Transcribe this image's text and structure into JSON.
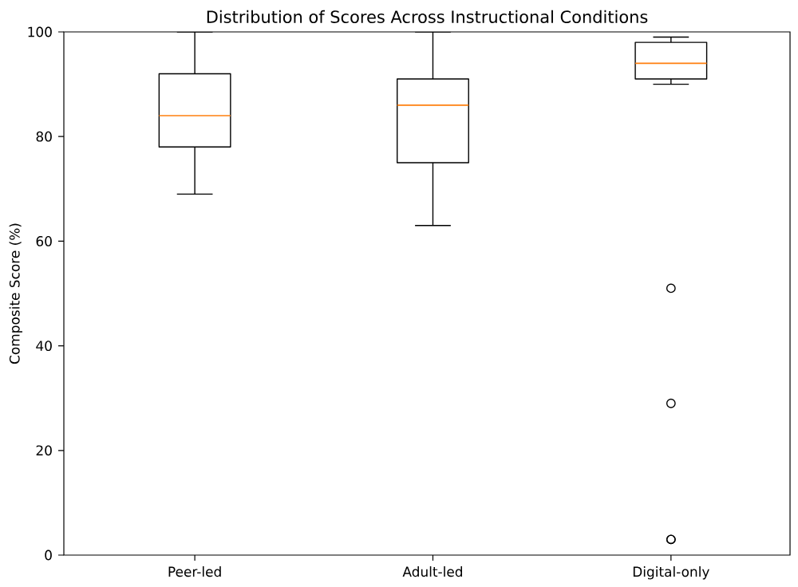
{
  "chart_data": {
    "type": "box",
    "title": "Distribution of Scores Across Instructional Conditions",
    "ylabel": "Composite Score (%)",
    "categories": [
      "Peer-led",
      "Adult-led",
      "Digital-only"
    ],
    "color": "#000000",
    "boxes": [
      {
        "low": 69,
        "q1": 78,
        "median": 84,
        "q3": 92,
        "high": 100
      },
      {
        "low": 63,
        "q1": 75,
        "median": 86,
        "q3": 91,
        "high": 100
      },
      {
        "low": 90,
        "q1": 91,
        "median": 94,
        "q3": 98,
        "high": 99,
        "outliers": [
          51,
          29,
          3,
          3
        ]
      }
    ],
    "ylim": [
      0,
      100
    ],
    "yticks": [
      0,
      20,
      40,
      60,
      80,
      100
    ]
  }
}
